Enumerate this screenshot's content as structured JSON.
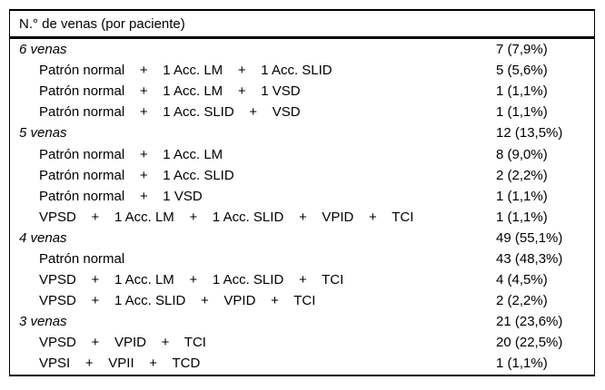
{
  "colors": {
    "background": "#ffffff",
    "text": "#000000",
    "border": "#000000"
  },
  "table": {
    "header": "N.° de venas (por paciente)",
    "rows": [
      {
        "style": "group",
        "label": "6 venas",
        "value": "7 (7,9%)"
      },
      {
        "style": "detail",
        "label": "Patrón normal    +    1 Acc. LM    +    1 Acc. SLID",
        "value": "5 (5,6%)"
      },
      {
        "style": "detail",
        "label": "Patrón normal    +    1 Acc. LM    +    1 VSD",
        "value": "1 (1,1%)"
      },
      {
        "style": "detail",
        "label": "Patrón normal    +    1 Acc. SLID    +    VSD",
        "value": "1 (1,1%)"
      },
      {
        "style": "group",
        "label": "5 venas",
        "value": "12 (13,5%)"
      },
      {
        "style": "detail",
        "label": "Patrón normal    +    1 Acc. LM",
        "value": "8 (9,0%)"
      },
      {
        "style": "detail",
        "label": "Patrón normal    +    1 Acc. SLID",
        "value": "2 (2,2%)"
      },
      {
        "style": "detail",
        "label": "Patrón normal    +    1 VSD",
        "value": "1 (1,1%)"
      },
      {
        "style": "detail",
        "label": "VPSD    +    1 Acc. LM    +    1 Acc. SLID    +    VPID    +    TCI",
        "value": "1 (1,1%)"
      },
      {
        "style": "group",
        "label": "4 venas",
        "value": "49 (55,1%)"
      },
      {
        "style": "detail",
        "label": "Patrón normal",
        "value": "43 (48,3%)"
      },
      {
        "style": "detail",
        "label": "VPSD    +    1 Acc. LM    +    1 Acc. SLID    +    TCI",
        "value": "4 (4,5%)"
      },
      {
        "style": "detail",
        "label": "VPSD    +    1 Acc. SLID    +    VPID    +    TCI",
        "value": "2 (2,2%)"
      },
      {
        "style": "group",
        "label": "3 venas",
        "value": "21 (23,6%)"
      },
      {
        "style": "detail",
        "label": "VPSD    +    VPID    +    TCI",
        "value": "20 (22,5%)"
      },
      {
        "style": "detail",
        "label": "VPSI    +    VPII    +    TCD",
        "value": "1 (1,1%)"
      }
    ]
  }
}
